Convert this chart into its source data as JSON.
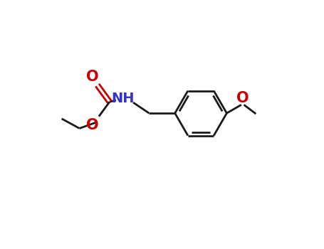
{
  "background_color": "#ffffff",
  "bond_color": "#1a1a1a",
  "oxygen_color": "#cc0000",
  "nitrogen_color": "#3333cc",
  "line_width": 2.0,
  "font_size_atom": 14,
  "fig_width": 4.55,
  "fig_height": 3.5,
  "dpi": 100,
  "xlim": [
    0,
    10
  ],
  "ylim": [
    0,
    7.7
  ]
}
